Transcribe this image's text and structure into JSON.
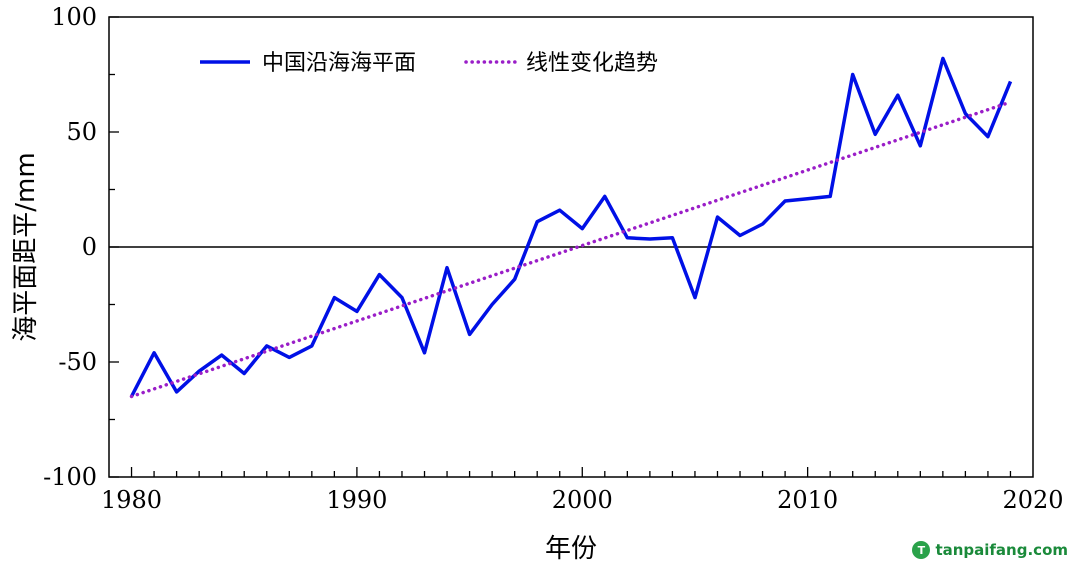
{
  "chart_data": {
    "type": "line",
    "title": "",
    "xlabel": "年份",
    "ylabel": "海平面距平/mm",
    "xlim": [
      1979,
      2020
    ],
    "ylim": [
      -100,
      100
    ],
    "xticks": [
      1980,
      1990,
      2000,
      2010,
      2020
    ],
    "yticks": [
      100,
      50,
      0,
      -50,
      -100
    ],
    "legend_position": "top-left",
    "grid": false,
    "series": [
      {
        "name": "中国沿海海平面",
        "color": "#0010e6",
        "style": "solid",
        "x": [
          1980,
          1981,
          1982,
          1983,
          1984,
          1985,
          1986,
          1987,
          1988,
          1989,
          1990,
          1991,
          1992,
          1993,
          1994,
          1995,
          1996,
          1997,
          1998,
          1999,
          2000,
          2001,
          2002,
          2003,
          2004,
          2005,
          2006,
          2007,
          2008,
          2009,
          2010,
          2011,
          2012,
          2013,
          2014,
          2015,
          2016,
          2017,
          2018,
          2019
        ],
        "values": [
          -65,
          -46,
          -63,
          -54,
          -47,
          -55,
          -43,
          -48,
          -43,
          -22,
          -28,
          -12,
          -22,
          -46,
          -9,
          -38,
          -25,
          -14,
          11,
          16,
          8,
          22,
          4,
          3.5,
          4,
          -22,
          13,
          5,
          10,
          20,
          21,
          22,
          75,
          49,
          66,
          44,
          82,
          58,
          48,
          72
        ]
      },
      {
        "name": "线性变化趋势",
        "color": "#9a1ec8",
        "style": "dotted",
        "x": [
          1980,
          2019
        ],
        "values": [
          -65,
          63
        ]
      }
    ]
  },
  "watermark": {
    "logo_text": "T",
    "text": "tanpaifang.com"
  }
}
